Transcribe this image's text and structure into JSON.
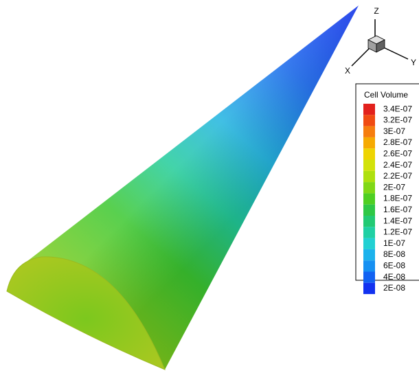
{
  "axes_triad": {
    "x": "X",
    "y": "Y",
    "z": "Z"
  },
  "legend": {
    "title": "Cell Volume",
    "entries": [
      {
        "label": "3.4E-07",
        "color": "#e2211c"
      },
      {
        "label": "3.2E-07",
        "color": "#f04b12"
      },
      {
        "label": "3E-07",
        "color": "#f67d0e"
      },
      {
        "label": "2.8E-07",
        "color": "#f6aa02"
      },
      {
        "label": "2.6E-07",
        "color": "#eed402"
      },
      {
        "label": "2.4E-07",
        "color": "#d2e20a"
      },
      {
        "label": "2.2E-07",
        "color": "#aee00e"
      },
      {
        "label": "2E-07",
        "color": "#80d816"
      },
      {
        "label": "1.8E-07",
        "color": "#4ecf22"
      },
      {
        "label": "1.6E-07",
        "color": "#2ec846"
      },
      {
        "label": "1.4E-07",
        "color": "#22ca74"
      },
      {
        "label": "1.2E-07",
        "color": "#20d0a4"
      },
      {
        "label": "1E-07",
        "color": "#22d0d2"
      },
      {
        "label": "8E-08",
        "color": "#1cb2ec"
      },
      {
        "label": "6E-08",
        "color": "#1690f2"
      },
      {
        "label": "4E-08",
        "color": "#1262f2"
      },
      {
        "label": "2E-08",
        "color": "#1232f0"
      }
    ]
  }
}
